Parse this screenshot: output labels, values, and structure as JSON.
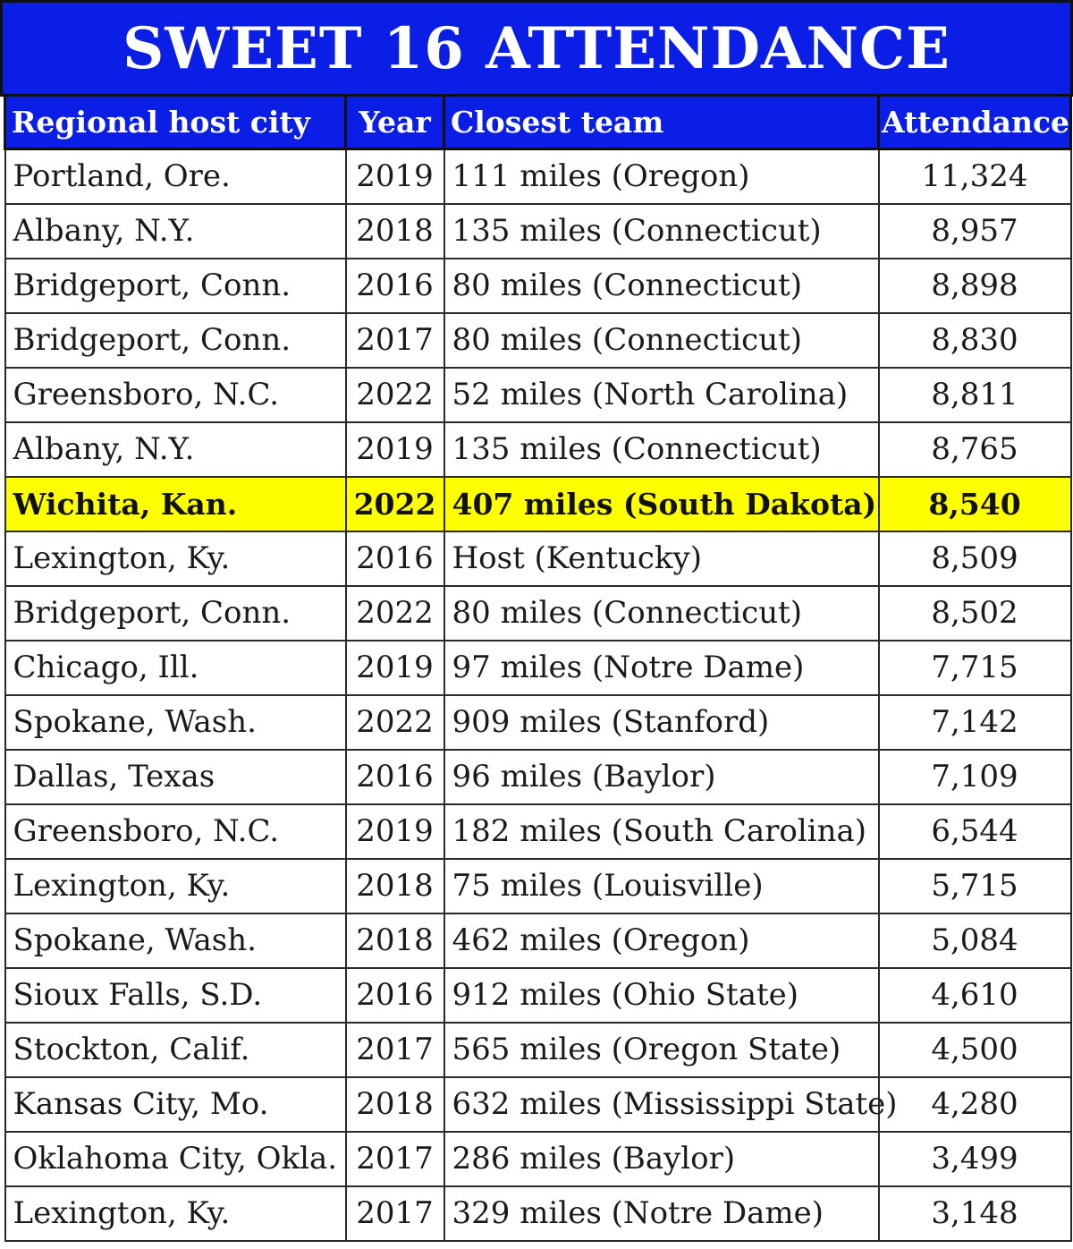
{
  "title": "SWEET 16 ATTENDANCE",
  "headers": {
    "city": "Regional host city",
    "year": "Year",
    "team": "Closest team",
    "attendance": "Attendance"
  },
  "colors": {
    "header_blue": "#0a1ee6",
    "highlight_yellow": "#ffff00"
  },
  "rows": [
    {
      "city": "Portland, Ore.",
      "year": "2019",
      "team": "111 miles (Oregon)",
      "attendance": "11,324",
      "highlight": false
    },
    {
      "city": "Albany, N.Y.",
      "year": "2018",
      "team": "135 miles (Connecticut)",
      "attendance": "8,957",
      "highlight": false
    },
    {
      "city": "Bridgeport, Conn.",
      "year": "2016",
      "team": "80 miles (Connecticut)",
      "attendance": "8,898",
      "highlight": false
    },
    {
      "city": "Bridgeport, Conn.",
      "year": "2017",
      "team": "80 miles (Connecticut)",
      "attendance": "8,830",
      "highlight": false
    },
    {
      "city": "Greensboro, N.C.",
      "year": "2022",
      "team": "52 miles (North Carolina)",
      "attendance": "8,811",
      "highlight": false
    },
    {
      "city": "Albany, N.Y.",
      "year": "2019",
      "team": "135 miles (Connecticut)",
      "attendance": "8,765",
      "highlight": false
    },
    {
      "city": "Wichita, Kan.",
      "year": "2022",
      "team": "407 miles (South Dakota)",
      "attendance": "8,540",
      "highlight": true
    },
    {
      "city": "Lexington, Ky.",
      "year": "2016",
      "team": "Host (Kentucky)",
      "attendance": "8,509",
      "highlight": false
    },
    {
      "city": "Bridgeport, Conn.",
      "year": "2022",
      "team": "80 miles (Connecticut)",
      "attendance": "8,502",
      "highlight": false
    },
    {
      "city": "Chicago, Ill.",
      "year": "2019",
      "team": "97 miles (Notre Dame)",
      "attendance": "7,715",
      "highlight": false
    },
    {
      "city": "Spokane, Wash.",
      "year": "2022",
      "team": "909 miles (Stanford)",
      "attendance": "7,142",
      "highlight": false
    },
    {
      "city": "Dallas, Texas",
      "year": "2016",
      "team": "96 miles (Baylor)",
      "attendance": "7,109",
      "highlight": false
    },
    {
      "city": "Greensboro, N.C.",
      "year": "2019",
      "team": "182 miles (South Carolina)",
      "attendance": "6,544",
      "highlight": false
    },
    {
      "city": "Lexington, Ky.",
      "year": "2018",
      "team": "75 miles (Louisville)",
      "attendance": "5,715",
      "highlight": false
    },
    {
      "city": "Spokane, Wash.",
      "year": "2018",
      "team": "462 miles (Oregon)",
      "attendance": "5,084",
      "highlight": false
    },
    {
      "city": "Sioux Falls, S.D.",
      "year": "2016",
      "team": "912 miles (Ohio State)",
      "attendance": "4,610",
      "highlight": false
    },
    {
      "city": "Stockton, Calif.",
      "year": "2017",
      "team": "565 miles (Oregon State)",
      "attendance": "4,500",
      "highlight": false
    },
    {
      "city": "Kansas City, Mo.",
      "year": "2018",
      "team": "632 miles (Mississippi State)",
      "attendance": "4,280",
      "highlight": false
    },
    {
      "city": "Oklahoma City, Okla.",
      "year": "2017",
      "team": "286 miles (Baylor)",
      "attendance": "3,499",
      "highlight": false
    },
    {
      "city": "Lexington, Ky.",
      "year": "2017",
      "team": "329 miles (Notre Dame)",
      "attendance": "3,148",
      "highlight": false
    }
  ]
}
